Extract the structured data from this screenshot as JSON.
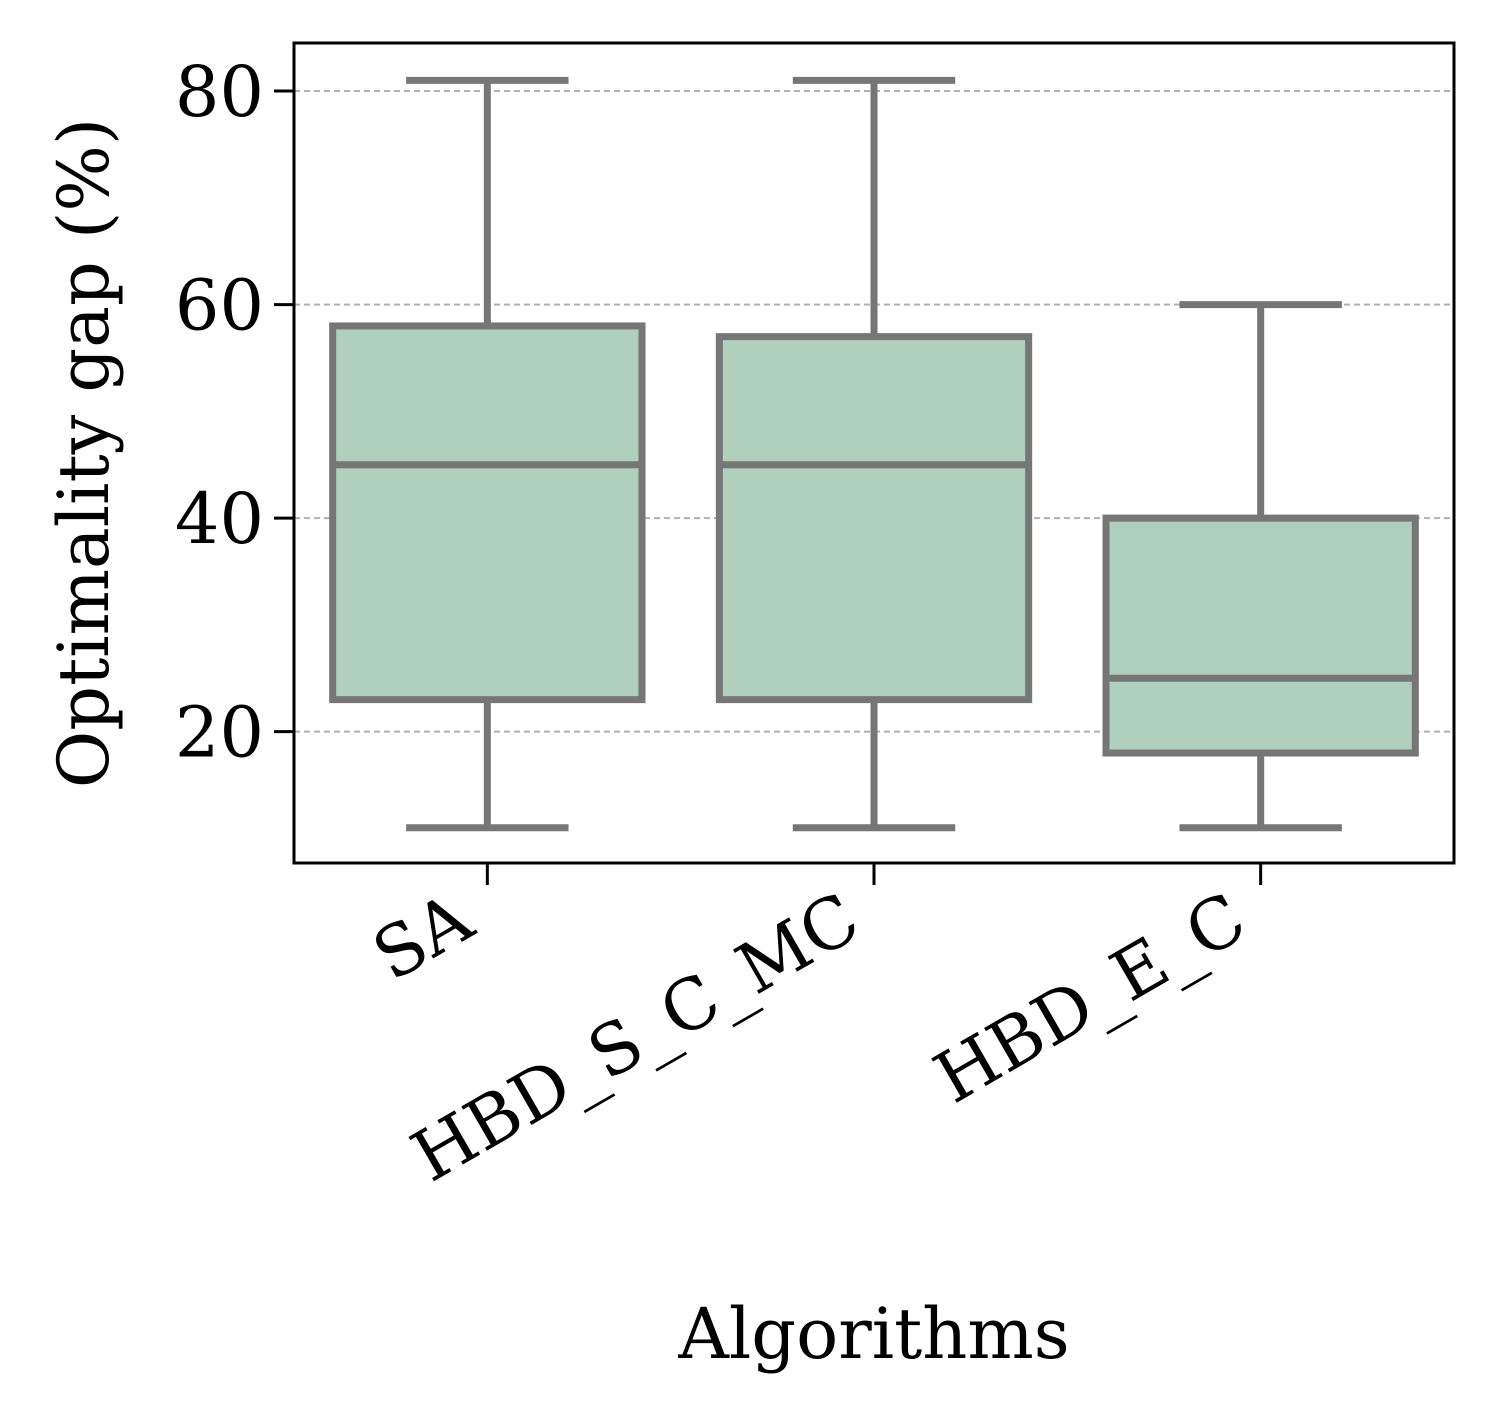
{
  "chart_data": {
    "type": "box",
    "categories": [
      "SA",
      "HBD_S_C_MC",
      "HBD_E_C"
    ],
    "boxes": [
      {
        "category": "SA",
        "whisker_low": 11,
        "q1": 23,
        "median": 45,
        "q3": 58,
        "whisker_high": 81
      },
      {
        "category": "HBD_S_C_MC",
        "whisker_low": 11,
        "q1": 23,
        "median": 45,
        "q3": 57,
        "whisker_high": 81
      },
      {
        "category": "HBD_E_C",
        "whisker_low": 11,
        "q1": 18,
        "median": 25,
        "q3": 40,
        "whisker_high": 60
      }
    ],
    "xlabel": "Algorithms",
    "ylabel": "Optimality gap (%)",
    "ylim": [
      7.7,
      84.5
    ],
    "yticks": [
      "20",
      "40",
      "60",
      "80"
    ],
    "grid": "y-dashed",
    "colors": {
      "box_fill": "#b0cfbc",
      "box_edge": "#767676",
      "grid": "#b0b0b0",
      "axis": "#000000"
    }
  }
}
